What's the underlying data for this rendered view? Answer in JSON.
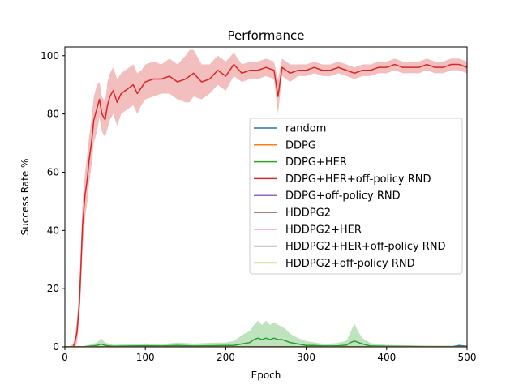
{
  "chart_data": {
    "type": "line",
    "title": "Performance",
    "xlabel": "Epoch",
    "ylabel": "Success Rate %",
    "xlim": [
      0,
      500
    ],
    "ylim": [
      0,
      103
    ],
    "xticks": [
      0,
      100,
      200,
      300,
      400,
      500
    ],
    "yticks": [
      0,
      20,
      40,
      60,
      80,
      100
    ],
    "grid": false,
    "legend_position": "center-right",
    "series": [
      {
        "name": "random",
        "color": "#1f77b4",
        "x": [
          0,
          100,
          200,
          300,
          400,
          480,
          490,
          500
        ],
        "y": [
          0,
          0,
          0,
          0,
          0,
          0,
          0.5,
          0.2
        ]
      },
      {
        "name": "DDPG",
        "color": "#ff7f0e",
        "x": [
          0,
          500
        ],
        "y": [
          0,
          0
        ]
      },
      {
        "name": "DDPG+HER",
        "color": "#2ca02c",
        "x": [
          0,
          20,
          30,
          40,
          45,
          50,
          60,
          80,
          100,
          120,
          140,
          160,
          180,
          200,
          210,
          220,
          230,
          235,
          240,
          245,
          250,
          255,
          260,
          265,
          270,
          275,
          280,
          290,
          300,
          310,
          320,
          330,
          340,
          350,
          355,
          360,
          365,
          370,
          380,
          400,
          450,
          500
        ],
        "y": [
          0,
          0,
          0.2,
          0.5,
          1,
          0.5,
          0.2,
          0.3,
          0.4,
          0.3,
          0.5,
          0.3,
          0.4,
          0.5,
          0.5,
          1,
          1.5,
          2.5,
          3,
          2.5,
          3,
          2.5,
          3,
          2.5,
          2.5,
          2,
          1.5,
          1,
          0.5,
          0.5,
          0.3,
          0.3,
          0.4,
          0.6,
          1.5,
          2,
          1.5,
          1,
          0.3,
          0.2,
          0.1,
          0.1
        ],
        "band": [
          0,
          0,
          0.5,
          1,
          2,
          1,
          0.5,
          0.6,
          0.8,
          0.6,
          1,
          0.8,
          1,
          1,
          1.5,
          3,
          4,
          5,
          6,
          5,
          6,
          5,
          5.5,
          5,
          4.5,
          4,
          3,
          2,
          1.5,
          1,
          0.8,
          0.8,
          1,
          1.5,
          3.5,
          6,
          3.5,
          2,
          1,
          0.5,
          0.3,
          0.2
        ]
      },
      {
        "name": "DDPG+HER+off-policy RND",
        "color": "#d62728",
        "x": [
          0,
          5,
          10,
          12,
          15,
          18,
          20,
          22,
          25,
          28,
          30,
          33,
          36,
          40,
          43,
          46,
          50,
          53,
          56,
          60,
          65,
          70,
          75,
          80,
          85,
          90,
          95,
          100,
          110,
          120,
          130,
          140,
          150,
          155,
          160,
          170,
          180,
          190,
          200,
          210,
          220,
          230,
          240,
          250,
          260,
          265,
          270,
          280,
          290,
          300,
          310,
          320,
          330,
          340,
          350,
          360,
          370,
          380,
          390,
          400,
          410,
          420,
          430,
          440,
          450,
          460,
          470,
          480,
          490,
          500
        ],
        "y": [
          0,
          0,
          0,
          1,
          5,
          15,
          28,
          42,
          52,
          58,
          64,
          70,
          78,
          82,
          85,
          80,
          78,
          83,
          86,
          88,
          84,
          87,
          88,
          89,
          90,
          87,
          89,
          91,
          92,
          92,
          93,
          91,
          92,
          93,
          94,
          91,
          92,
          95,
          93,
          97,
          94,
          95,
          95,
          96,
          95,
          86,
          96,
          94,
          95,
          95,
          96,
          95,
          95,
          96,
          95,
          94,
          95,
          95,
          96,
          96,
          97,
          96,
          96,
          96,
          97,
          96,
          96,
          97,
          97,
          96
        ],
        "band": [
          0,
          0,
          1,
          2,
          4,
          6,
          8,
          8,
          8,
          8,
          8,
          8,
          8,
          8,
          6,
          6,
          6,
          8,
          8,
          8,
          8,
          7,
          7,
          7,
          7,
          7,
          6,
          6,
          6,
          5,
          6,
          6,
          8,
          9,
          8,
          6,
          5,
          5,
          5,
          4,
          3,
          3,
          3,
          3,
          3,
          6,
          3,
          3,
          2,
          2,
          2,
          2,
          2,
          2,
          2,
          2,
          2,
          2,
          2,
          2,
          2,
          2,
          2,
          2,
          2,
          2,
          2,
          2,
          2,
          2
        ]
      },
      {
        "name": "DDPG+off-policy RND",
        "color": "#9467bd",
        "x": [
          0,
          500
        ],
        "y": [
          0,
          0
        ]
      },
      {
        "name": "HDDPG2",
        "color": "#8c564b",
        "x": [
          0,
          500
        ],
        "y": [
          0,
          0
        ]
      },
      {
        "name": "HDDPG2+HER",
        "color": "#e377c2",
        "x": [
          0,
          500
        ],
        "y": [
          0,
          0
        ]
      },
      {
        "name": "HDDPG2+HER+off-policy RND",
        "color": "#7f7f7f",
        "x": [
          0,
          500
        ],
        "y": [
          0,
          0
        ]
      },
      {
        "name": "HDDPG2+off-policy RND",
        "color": "#bcbd22",
        "x": [
          0,
          500
        ],
        "y": [
          0,
          0
        ]
      }
    ]
  }
}
